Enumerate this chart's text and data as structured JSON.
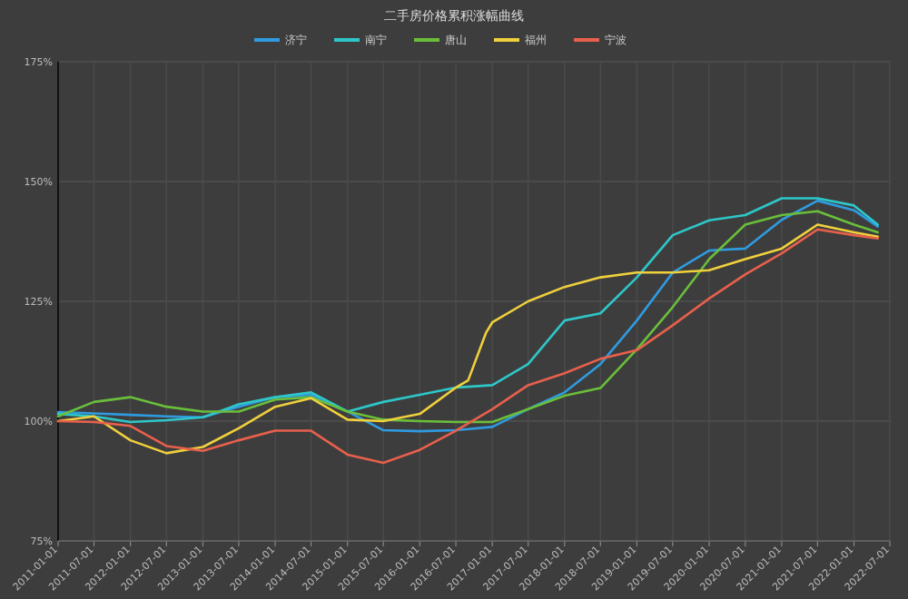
{
  "chart_data": {
    "type": "line",
    "title": "二手房价格累积涨幅曲线",
    "x": [
      "2011-01-01",
      "2011-07-01",
      "2012-01-01",
      "2012-07-01",
      "2013-01-01",
      "2013-07-01",
      "2014-01-01",
      "2014-07-01",
      "2015-01-01",
      "2015-07-01",
      "2016-01-01",
      "2016-07-01",
      "2017-01-01",
      "2017-07-01",
      "2018-01-01",
      "2018-07-01",
      "2019-01-01",
      "2019-07-01",
      "2020-01-01",
      "2020-07-01",
      "2021-01-01",
      "2021-07-01",
      "2022-01-01",
      "2022-05-01"
    ],
    "series": [
      {
        "name": "济宁",
        "color": "#2f9be0",
        "values": [
          101.9,
          101.6,
          101.3,
          101,
          100.8,
          103,
          105,
          105.5,
          102,
          98.1,
          97.9,
          98.1,
          98.8,
          102.5,
          106,
          111.9,
          121,
          131,
          135.6,
          136,
          142,
          146,
          144,
          140.6
        ]
      },
      {
        "name": "南宁",
        "color": "#2ec7c9",
        "values": [
          101.5,
          101,
          99.8,
          100.2,
          100.8,
          103.5,
          105,
          106,
          102,
          104,
          105.5,
          107,
          107.5,
          111.9,
          121,
          122.5,
          130,
          138.8,
          141.9,
          143,
          146.5,
          146.5,
          145,
          141
        ]
      },
      {
        "name": "唐山",
        "color": "#6abf3a",
        "values": [
          101,
          104,
          105,
          103,
          102,
          102,
          104.5,
          105,
          102,
          100.3,
          100,
          99.8,
          99.8,
          102.5,
          105.3,
          106.9,
          115,
          123.8,
          133.8,
          141,
          143,
          143.8,
          141,
          139.4
        ]
      },
      {
        "name": "福州",
        "color": "#f0d03c",
        "x": [
          "2011-01-01",
          "2011-07-01",
          "2012-01-01",
          "2012-07-01",
          "2013-01-01",
          "2013-07-01",
          "2014-01-01",
          "2014-07-01",
          "2015-01-01",
          "2015-07-01",
          "2016-01-01",
          "2016-07-01",
          "2016-09-01",
          "2016-12-01",
          "2017-01-01",
          "2017-07-01",
          "2018-01-01",
          "2018-07-01",
          "2019-01-01",
          "2019-07-01",
          "2020-01-01",
          "2020-07-01",
          "2021-01-01",
          "2021-07-01",
          "2022-01-01",
          "2022-05-01"
        ],
        "values": [
          100,
          101,
          96,
          93.3,
          94.6,
          98.5,
          103,
          104.8,
          100.3,
          100,
          101.5,
          107,
          108.5,
          118.5,
          120.6,
          125,
          128,
          130,
          131,
          131,
          131.5,
          133.8,
          136,
          141,
          139.4,
          138.5
        ]
      },
      {
        "name": "宁波",
        "color": "#e8604c",
        "values": [
          100,
          99.8,
          99,
          94.8,
          93.8,
          96,
          98,
          98,
          93,
          91.3,
          94,
          98,
          102.5,
          107.5,
          110,
          113,
          114.8,
          120,
          125.6,
          130.6,
          135,
          140,
          138.8,
          138.1
        ]
      }
    ],
    "xlim": [
      "2011-01-01",
      "2022-07-01"
    ],
    "xticks": [
      "2011-01-01",
      "2011-07-01",
      "2012-01-01",
      "2012-07-01",
      "2013-01-01",
      "2013-07-01",
      "2014-01-01",
      "2014-07-01",
      "2015-01-01",
      "2015-07-01",
      "2016-01-01",
      "2016-07-01",
      "2017-01-01",
      "2017-07-01",
      "2018-01-01",
      "2018-07-01",
      "2019-01-01",
      "2019-07-01",
      "2020-01-01",
      "2020-07-01",
      "2021-01-01",
      "2021-07-01",
      "2022-01-01",
      "2022-07-01"
    ],
    "ylim": [
      75,
      175
    ],
    "yticks": [
      {
        "value": 75,
        "label": "75%"
      },
      {
        "value": 100,
        "label": "100%"
      },
      {
        "value": 125,
        "label": "125%"
      },
      {
        "value": 150,
        "label": "150%"
      },
      {
        "value": 175,
        "label": "175%"
      }
    ],
    "grid": true,
    "legend": "top",
    "marker": "none",
    "line_style": "solid"
  }
}
